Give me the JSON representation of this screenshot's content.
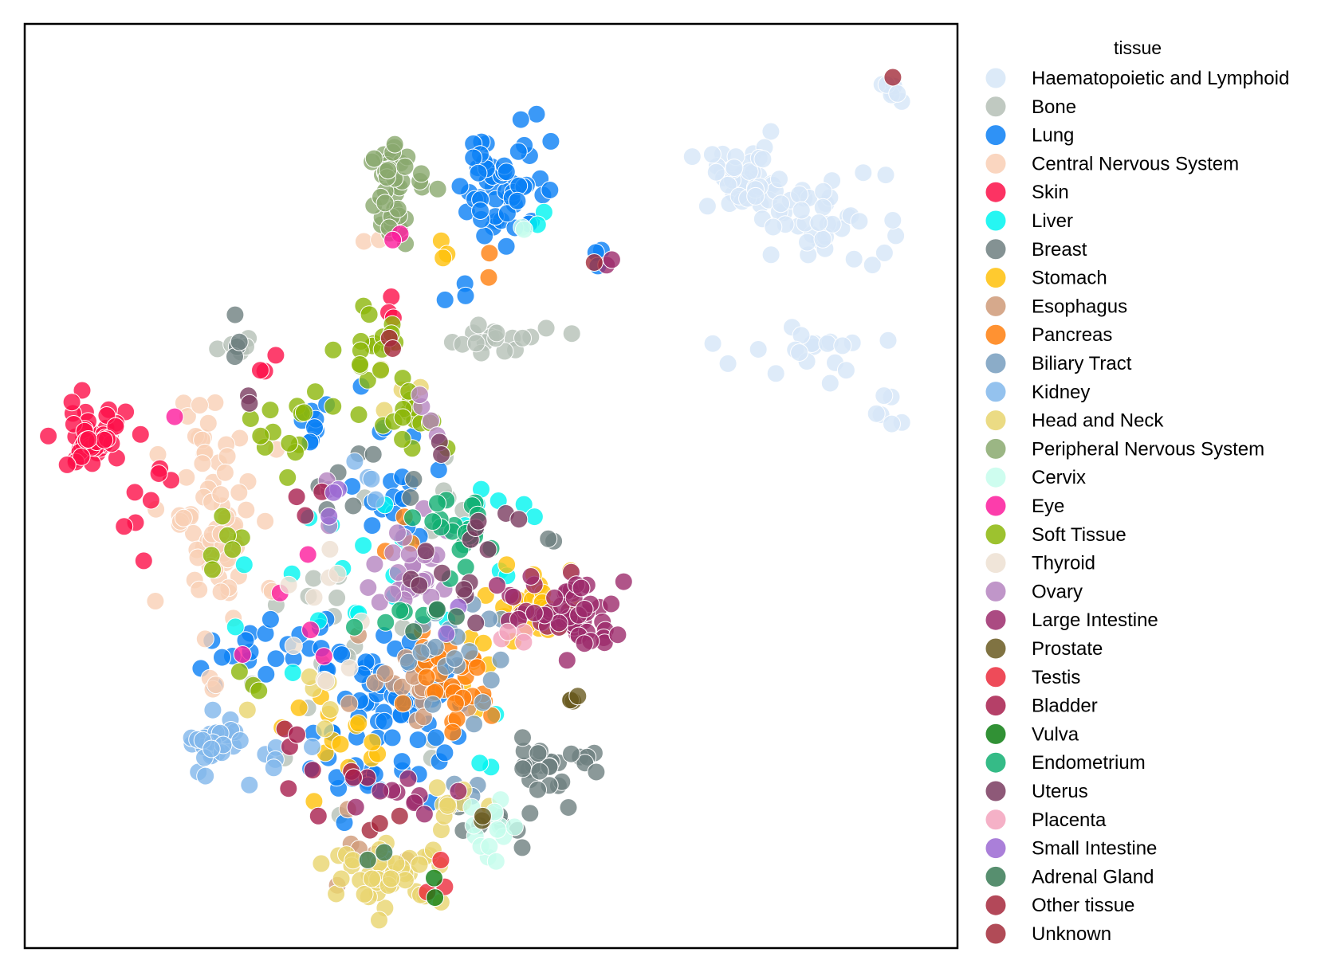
{
  "chart_data": {
    "type": "scatter",
    "title": "",
    "xlabel": "",
    "ylabel": "",
    "xlim": [
      0,
      100
    ],
    "ylim": [
      0,
      100
    ],
    "grid": false,
    "axes_ticks": false,
    "legend": {
      "title": "tissue",
      "placement": "outside-right"
    },
    "series": [
      {
        "name": "Haematopoietic and Lymphoid",
        "color": "#d6e6f7",
        "clusters": [
          [
            77,
            83,
            5,
            3,
            40
          ],
          [
            85,
            79,
            6,
            4,
            45
          ],
          [
            83,
            64,
            6,
            2.5,
            20
          ],
          [
            93,
            93,
            1.5,
            1.5,
            8
          ],
          [
            93,
            58,
            1.5,
            1.5,
            6
          ]
        ]
      },
      {
        "name": "Bone",
        "color": "#b5c0b6",
        "clusters": [
          [
            52,
            66,
            6,
            1.5,
            18
          ],
          [
            23,
            65,
            1.2,
            2,
            5
          ],
          [
            35,
            33,
            10,
            15,
            18
          ],
          [
            46,
            50,
            4,
            4,
            5
          ]
        ]
      },
      {
        "name": "Lung",
        "color": "#0a7ff5",
        "clusters": [
          [
            51.5,
            83,
            4,
            6,
            55
          ],
          [
            38,
            25,
            6,
            8,
            70
          ],
          [
            27,
            32,
            8,
            3,
            22
          ],
          [
            39,
            51,
            4,
            6,
            18
          ],
          [
            61,
            75,
            1,
            2,
            3
          ],
          [
            46,
            71,
            2,
            2,
            3
          ],
          [
            31,
            56,
            2,
            2,
            8
          ]
        ]
      },
      {
        "name": "Central Nervous System",
        "color": "#f9cfb5",
        "clusters": [
          [
            20,
            47,
            4,
            12,
            75
          ],
          [
            38,
            77,
            2,
            2,
            4
          ]
        ]
      },
      {
        "name": "Skin",
        "color": "#fc0f48",
        "clusters": [
          [
            7,
            55,
            3.5,
            3,
            52
          ],
          [
            14,
            50,
            4,
            6,
            8
          ],
          [
            39,
            68,
            1,
            2,
            3
          ],
          [
            26,
            63,
            1,
            1,
            3
          ]
        ]
      },
      {
        "name": "Liver",
        "color": "#00f5f0",
        "clusters": [
          [
            36,
            40,
            10,
            7,
            22
          ],
          [
            52,
            47,
            3,
            2,
            5
          ],
          [
            49,
            22,
            3,
            4,
            3
          ],
          [
            55,
            79,
            1,
            1,
            2
          ]
        ]
      },
      {
        "name": "Breast",
        "color": "#6e7f80",
        "clusters": [
          [
            57,
            20,
            4,
            3,
            28
          ],
          [
            50,
            13,
            4,
            2,
            8
          ],
          [
            37,
            49,
            5,
            4,
            8
          ],
          [
            23,
            66,
            1,
            2,
            4
          ],
          [
            56,
            45,
            1,
            1,
            2
          ]
        ]
      },
      {
        "name": "Stomach",
        "color": "#ffc10a",
        "clusters": [
          [
            55,
            37,
            4,
            5,
            26
          ],
          [
            34,
            22,
            5,
            4,
            14
          ],
          [
            44,
            74,
            2,
            2,
            3
          ],
          [
            47,
            30,
            3,
            3,
            6
          ]
        ]
      },
      {
        "name": "Esophagus",
        "color": "#cf9a78",
        "clusters": [
          [
            42,
            27,
            7,
            4,
            18
          ],
          [
            36,
            10,
            4,
            3,
            6
          ]
        ]
      },
      {
        "name": "Pancreas",
        "color": "#ff7f0e",
        "clusters": [
          [
            45,
            28,
            4,
            4,
            30
          ],
          [
            40,
            45,
            2,
            3,
            3
          ],
          [
            50,
            74,
            1,
            1,
            2
          ]
        ]
      },
      {
        "name": "Biliary Tract",
        "color": "#779dbe",
        "clusters": [
          [
            45,
            32,
            5,
            5,
            20
          ],
          [
            48,
            17,
            3,
            2,
            5
          ]
        ]
      },
      {
        "name": "Kidney",
        "color": "#81b7eb",
        "clusters": [
          [
            20,
            22,
            2.5,
            3,
            28
          ],
          [
            27,
            22,
            3,
            3,
            7
          ],
          [
            37,
            50,
            3,
            3,
            4
          ]
        ]
      },
      {
        "name": "Head and Neck",
        "color": "#e8d56e",
        "clusters": [
          [
            39,
            8,
            5,
            2.5,
            48
          ],
          [
            46,
            15,
            3,
            2,
            10
          ],
          [
            40,
            60,
            3,
            3,
            6
          ],
          [
            31,
            30,
            5,
            4,
            6
          ]
        ]
      },
      {
        "name": "Peripheral Nervous System",
        "color": "#8aa96e",
        "clusters": [
          [
            39.5,
            82,
            2,
            6,
            40
          ],
          [
            43,
            83,
            2,
            2,
            4
          ]
        ]
      },
      {
        "name": "Cervix",
        "color": "#c6fdec",
        "clusters": [
          [
            50,
            13,
            2.5,
            3,
            14
          ],
          [
            53,
            78,
            1,
            1,
            2
          ]
        ]
      },
      {
        "name": "Eye",
        "color": "#fc1b9c",
        "clusters": [
          [
            40,
            76.5,
            1,
            1,
            2
          ],
          [
            31,
            37,
            5,
            8,
            5
          ],
          [
            16,
            58,
            0.5,
            0.5,
            1
          ]
        ]
      },
      {
        "name": "Soft Tissue",
        "color": "#8cb70a",
        "clusters": [
          [
            37,
            66,
            3,
            4,
            16
          ],
          [
            41,
            58,
            4,
            4,
            18
          ],
          [
            28,
            57,
            4,
            3,
            14
          ],
          [
            22,
            43,
            2,
            4,
            6
          ],
          [
            25,
            28,
            2,
            3,
            3
          ]
        ]
      },
      {
        "name": "Thyroid",
        "color": "#ede0d2",
        "clusters": [
          [
            32,
            40,
            4,
            7,
            7
          ],
          [
            32,
            30,
            3,
            3,
            3
          ]
        ]
      },
      {
        "name": "Ovary",
        "color": "#b584c0",
        "clusters": [
          [
            42,
            41,
            4,
            4,
            32
          ],
          [
            43,
            57,
            2,
            2,
            4
          ],
          [
            33,
            48,
            4,
            3,
            3
          ]
        ]
      },
      {
        "name": "Large Intestine",
        "color": "#9c2b6c",
        "clusters": [
          [
            59,
            36,
            3.5,
            3.5,
            50
          ],
          [
            53,
            37,
            3,
            4,
            8
          ],
          [
            41,
            16,
            6,
            3,
            10
          ],
          [
            63,
            74,
            1,
            1,
            2
          ]
        ]
      },
      {
        "name": "Prostate",
        "color": "#6a5b21",
        "clusters": [
          [
            58.5,
            27,
            1,
            1.5,
            4
          ],
          [
            50,
            14,
            1,
            1,
            2
          ]
        ]
      },
      {
        "name": "Testis",
        "color": "#eb2c3c",
        "clusters": [
          [
            45,
            7,
            4,
            2,
            3
          ]
        ]
      },
      {
        "name": "Bladder",
        "color": "#a81e4d",
        "clusters": [
          [
            34,
            17,
            4,
            3,
            6
          ],
          [
            30,
            48,
            2,
            2,
            3
          ],
          [
            30,
            24,
            2,
            2,
            3
          ]
        ]
      },
      {
        "name": "Vulva",
        "color": "#0d7e12",
        "clusters": [
          [
            44,
            6,
            1,
            1,
            2
          ]
        ]
      },
      {
        "name": "Endometrium",
        "color": "#12af72",
        "clusters": [
          [
            47,
            45,
            3,
            3,
            22
          ],
          [
            43,
            36,
            2,
            2,
            4
          ],
          [
            38,
            34,
            2,
            2,
            3
          ]
        ]
      },
      {
        "name": "Uterus",
        "color": "#7a3c60",
        "clusters": [
          [
            44,
            41,
            4,
            4,
            8
          ],
          [
            50,
            45,
            3,
            3,
            6
          ],
          [
            45,
            54,
            1,
            1,
            2
          ],
          [
            24,
            60,
            1,
            1,
            2
          ]
        ]
      },
      {
        "name": "Placenta",
        "color": "#f3a3bd",
        "clusters": [
          [
            52,
            35,
            2,
            2,
            4
          ]
        ]
      },
      {
        "name": "Small Intestine",
        "color": "#9b69d2",
        "clusters": [
          [
            33,
            48,
            2,
            2,
            3
          ],
          [
            47,
            35,
            2,
            2,
            2
          ]
        ]
      },
      {
        "name": "Adrenal Gland",
        "color": "#3a7b56",
        "clusters": [
          [
            43,
            36,
            2,
            3,
            3
          ],
          [
            37,
            10,
            2,
            2,
            2
          ]
        ]
      },
      {
        "name": "Other tissue",
        "color": "#a6283c",
        "clusters": [
          [
            38,
            14,
            3,
            2,
            3
          ],
          [
            39,
            66,
            1,
            1,
            2
          ]
        ]
      },
      {
        "name": "Unknown",
        "color": "#a32c3a",
        "clusters": [
          [
            93.2,
            94,
            0.2,
            0.2,
            1
          ],
          [
            61,
            74,
            0.3,
            0.3,
            1
          ]
        ]
      }
    ]
  }
}
